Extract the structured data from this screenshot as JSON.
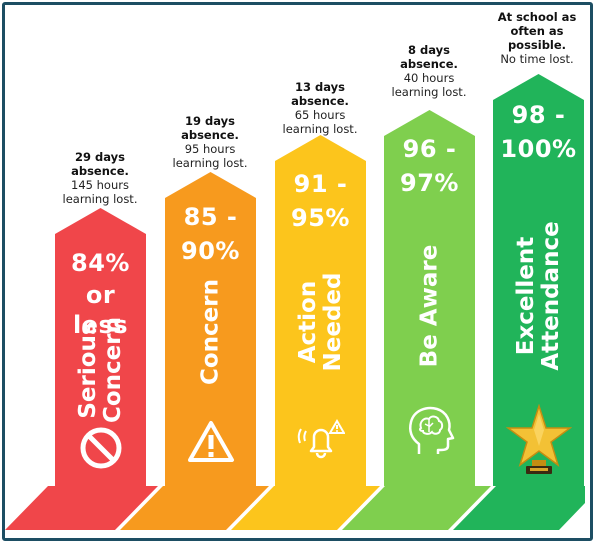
{
  "columns": [
    {
      "percent_line1": "84%",
      "percent_line2": "or less",
      "label_line1": "Serious",
      "label_line2": "Concern",
      "info_bold_line1": "29 days",
      "info_bold_line2": "absence.",
      "info_line1": "145 hours",
      "info_line2": "learning lost.",
      "icon": "no-entry-icon",
      "color": "#f0464a"
    },
    {
      "percent_line1": "85 -",
      "percent_line2": "90%",
      "label_line1": "Concern",
      "info_bold_line1": "19 days",
      "info_bold_line2": "absence.",
      "info_line1": "95 hours",
      "info_line2": "learning lost.",
      "icon": "warning-icon",
      "color": "#f79a1e"
    },
    {
      "percent_line1": "91 -",
      "percent_line2": "95%",
      "label_line1": "Action",
      "label_line2": "Needed",
      "info_bold_line1": "13 days",
      "info_bold_line2": "absence.",
      "info_line1": "65 hours",
      "info_line2": "learning lost.",
      "icon": "alarm-bell-icon",
      "color": "#fcc51c"
    },
    {
      "percent_line1": "96 -",
      "percent_line2": "97%",
      "label_line1": "Be Aware",
      "info_bold_line1": "8 days",
      "info_bold_line2": "absence.",
      "info_line1": "40 hours",
      "info_line2": "learning lost.",
      "icon": "brain-head-icon",
      "color": "#7fcf4e"
    },
    {
      "percent_line1": "98 -",
      "percent_line2": "100%",
      "label_line1": "Excellent",
      "label_line2": "Attendance",
      "info_bold_line1": "At school as",
      "info_bold_line2": "often as",
      "info_bold_line3": "possible.",
      "info_line1": "No time lost.",
      "icon": "gold-star-trophy-icon",
      "color": "#21b45a"
    }
  ]
}
